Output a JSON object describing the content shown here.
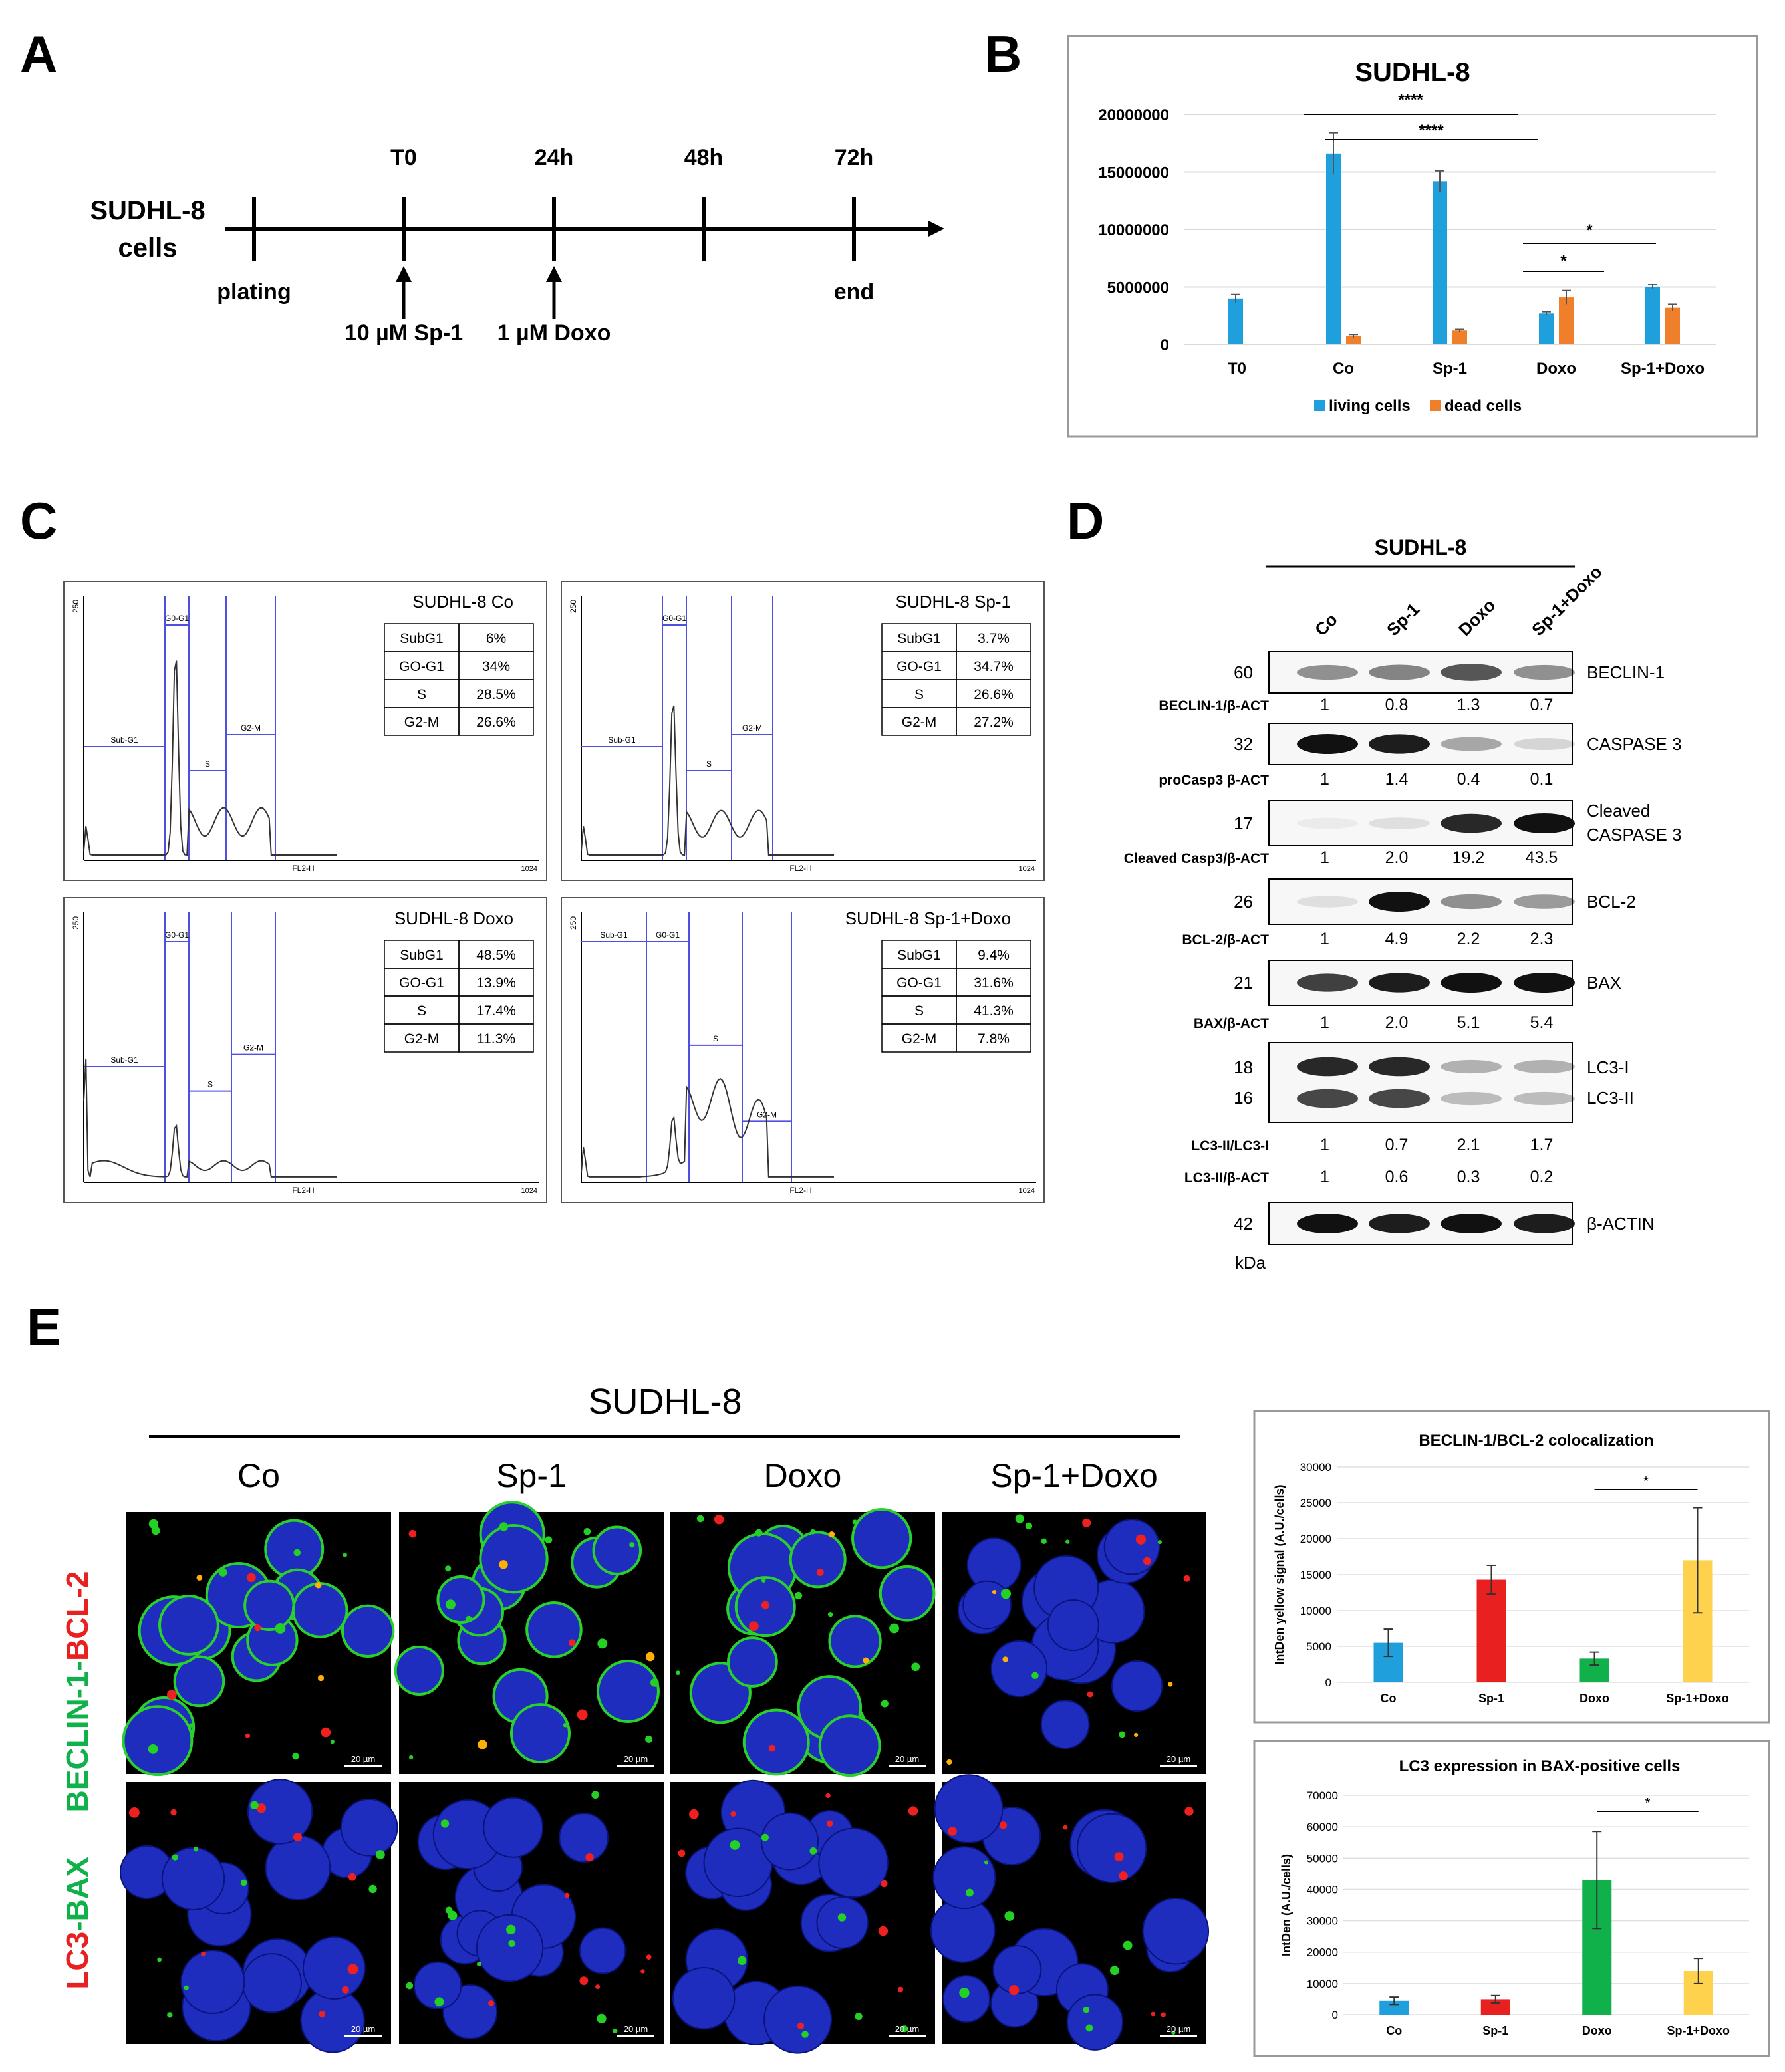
{
  "panels": {
    "A": {
      "letter": "A",
      "cell_line": [
        "SUDHL-8",
        "cells"
      ],
      "timepoints": [
        "T0",
        "24h",
        "48h",
        "72h"
      ],
      "events": [
        "plating",
        "end"
      ],
      "treatments": [
        "10 µM Sp-1",
        "1 µM Doxo"
      ]
    },
    "B": {
      "letter": "B"
    },
    "C": {
      "letter": "C",
      "plots": [
        {
          "title": "SUDHL-8 Co",
          "table": [
            [
              "SubG1",
              "6%"
            ],
            [
              "GO-G1",
              "34%"
            ],
            [
              "S",
              "28.5%"
            ],
            [
              "G2-M",
              "26.6%"
            ]
          ]
        },
        {
          "title": "SUDHL-8 Sp-1",
          "table": [
            [
              "SubG1",
              "3.7%"
            ],
            [
              "GO-G1",
              "34.7%"
            ],
            [
              "S",
              "26.6%"
            ],
            [
              "G2-M",
              "27.2%"
            ]
          ]
        },
        {
          "title": "SUDHL-8 Doxo",
          "table": [
            [
              "SubG1",
              "48.5%"
            ],
            [
              "GO-G1",
              "13.9%"
            ],
            [
              "S",
              "17.4%"
            ],
            [
              "G2-M",
              "11.3%"
            ]
          ]
        },
        {
          "title": "SUDHL-8 Sp-1+Doxo",
          "table": [
            [
              "SubG1",
              "9.4%"
            ],
            [
              "GO-G1",
              "31.6%"
            ],
            [
              "S",
              "41.3%"
            ],
            [
              "G2-M",
              "7.8%"
            ]
          ]
        }
      ],
      "gate_labels": [
        "Sub-G1",
        "G0-G1",
        "S",
        "G2-M"
      ],
      "axis_x": "FL2-H",
      "axis_y_max": "250",
      "axis_x_max": "1024"
    },
    "D": {
      "letter": "D",
      "title": "SUDHL-8",
      "lanes": [
        "Co",
        "Sp-1",
        "Doxo",
        "Sp-1+Doxo"
      ],
      "kda_label": "kDa",
      "blots": [
        {
          "kda": "60",
          "protein": "BECLIN-1",
          "ratio_label": "BECLIN-1/β-ACT",
          "ratios": [
            "1",
            "0.8",
            "1.3",
            "0.7"
          ]
        },
        {
          "kda": "32",
          "protein": "CASPASE 3",
          "ratio_label": "proCasp3 β-ACT",
          "ratios": [
            "1",
            "1.4",
            "0.4",
            "0.1"
          ]
        },
        {
          "kda": "17",
          "protein": "Cleaved",
          "protein2": "CASPASE 3",
          "ratio_label": "Cleaved Casp3/β-ACT",
          "ratios": [
            "1",
            "2.0",
            "19.2",
            "43.5"
          ]
        },
        {
          "kda": "26",
          "protein": "BCL-2",
          "ratio_label": "BCL-2/β-ACT",
          "ratios": [
            "1",
            "4.9",
            "2.2",
            "2.3"
          ]
        },
        {
          "kda": "21",
          "protein": "BAX",
          "ratio_label": "BAX/β-ACT",
          "ratios": [
            "1",
            "2.0",
            "5.1",
            "5.4"
          ]
        },
        {
          "kda": "18",
          "kda2": "16",
          "protein": "LC3-I",
          "protein2": "LC3-II",
          "ratio_label": "LC3-II/LC3-I",
          "ratios": [
            "1",
            "0.7",
            "2.1",
            "1.7"
          ],
          "ratio_label2": "LC3-II/β-ACT",
          "ratios2": [
            "1",
            "0.6",
            "0.3",
            "0.2"
          ]
        },
        {
          "kda": "42",
          "protein": "β-ACTIN"
        }
      ]
    },
    "E": {
      "letter": "E",
      "title": "SUDHL-8",
      "columns": [
        "Co",
        "Sp-1",
        "Doxo",
        "Sp-1+Doxo"
      ],
      "row1_label": {
        "a": "BECLIN-1",
        "sep": "-",
        "b": "BCL-2"
      },
      "row2_label": {
        "a": "LC3",
        "sep": "-",
        "b": "BAX"
      },
      "scale_bar": "20 µm"
    }
  },
  "colors": {
    "blue": "#1f9fdc",
    "orange": "#f07f2c",
    "red": "#e82020",
    "green": "#10b04a",
    "yellow": "#ffd24d",
    "gate": "#5050e0"
  },
  "chart_data": [
    {
      "id": "B",
      "type": "bar",
      "title": "SUDHL-8",
      "categories": [
        "T0",
        "Co",
        "Sp-1",
        "Doxo",
        "Sp-1+Doxo"
      ],
      "series": [
        {
          "name": "living cells",
          "values": [
            4000000,
            16600000,
            14200000,
            2700000,
            5000000
          ],
          "errors": [
            350000,
            1800000,
            900000,
            150000,
            200000
          ]
        },
        {
          "name": "dead cells",
          "values": [
            null,
            700000,
            1200000,
            4100000,
            3200000
          ],
          "errors": [
            null,
            150000,
            100000,
            600000,
            300000
          ]
        }
      ],
      "yticks": [
        "0",
        "5000000",
        "10000000",
        "15000000",
        "20000000"
      ],
      "ylim": [
        0,
        20000000
      ],
      "significance": [
        {
          "from": "Co",
          "to": "Doxo",
          "label": "****"
        },
        {
          "from": "Co",
          "to": "Doxo",
          "label": "****"
        },
        {
          "from": "Doxo",
          "to": "Sp-1+Doxo",
          "label": "*"
        },
        {
          "from": "Doxo",
          "to": "Sp-1+Doxo",
          "label": "*"
        }
      ]
    },
    {
      "id": "E1",
      "type": "bar",
      "title": "BECLIN-1/BCL-2 colocalization",
      "ylabel": "IntDen yellow signal (A.U./cells)",
      "categories": [
        "Co",
        "Sp-1",
        "Doxo",
        "Sp-1+Doxo"
      ],
      "values": [
        5500,
        14300,
        3300,
        17000
      ],
      "errors": [
        1900,
        2000,
        900,
        7300
      ],
      "yticks": [
        "0",
        "5000",
        "10000",
        "15000",
        "20000",
        "25000",
        "30000"
      ],
      "ylim": [
        0,
        30000
      ],
      "significance": [
        {
          "from": "Doxo",
          "to": "Sp-1+Doxo",
          "label": "*"
        }
      ]
    },
    {
      "id": "E2",
      "type": "bar",
      "title": "LC3 expression in BAX-positive cells",
      "ylabel": "IntDen (A.U./cells)",
      "categories": [
        "Co",
        "Sp-1",
        "Doxo",
        "Sp-1+Doxo"
      ],
      "values": [
        4500,
        5000,
        43000,
        14000
      ],
      "errors": [
        1200,
        1200,
        15500,
        4000
      ],
      "yticks": [
        "0",
        "10000",
        "20000",
        "30000",
        "40000",
        "50000",
        "60000",
        "70000"
      ],
      "ylim": [
        0,
        70000
      ],
      "significance": [
        {
          "from": "Doxo",
          "to": "Sp-1+Doxo",
          "label": "*"
        }
      ]
    }
  ]
}
